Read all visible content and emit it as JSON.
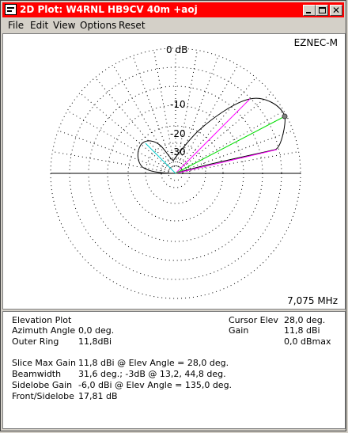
{
  "window": {
    "title": "2D Plot: W4RNL HB9CV 40m +aoj"
  },
  "menu": [
    "File",
    "Edit",
    "View",
    "Options",
    "Reset"
  ],
  "plot": {
    "brand": "EZNEC-M",
    "frequency": "7,075 MHz",
    "ring_labels": [
      "0 dB",
      "-10",
      "-20",
      "-30"
    ],
    "colors": {
      "pattern": "#000000",
      "cursor": "#00dd00",
      "beamwidth": "#ff00ff",
      "sidelobe": "#00d0d0",
      "grid": "#000000"
    }
  },
  "info": {
    "left": [
      {
        "label": "Elevation Plot",
        "value": ""
      },
      {
        "label": "Azimuth Angle",
        "value": "0,0 deg."
      },
      {
        "label": "Outer Ring",
        "value": "11,8dBi"
      }
    ],
    "right": [
      {
        "label": "Cursor Elev",
        "value": "28,0 deg."
      },
      {
        "label": "Gain",
        "value": "11,8 dBi"
      },
      {
        "label": "",
        "value": "0,0 dBmax"
      }
    ],
    "stats": [
      {
        "label": "Slice Max Gain",
        "value": "11,8 dBi @ Elev Angle = 28,0 deg."
      },
      {
        "label": "Beamwidth",
        "value": "31,6 deg.; -3dB @ 13,2, 44,8 deg."
      },
      {
        "label": "Sidelobe Gain",
        "value": "-6,0 dBi @ Elev Angle = 135,0 deg."
      },
      {
        "label": "Front/Sidelobe",
        "value": "17,81 dB"
      }
    ]
  }
}
